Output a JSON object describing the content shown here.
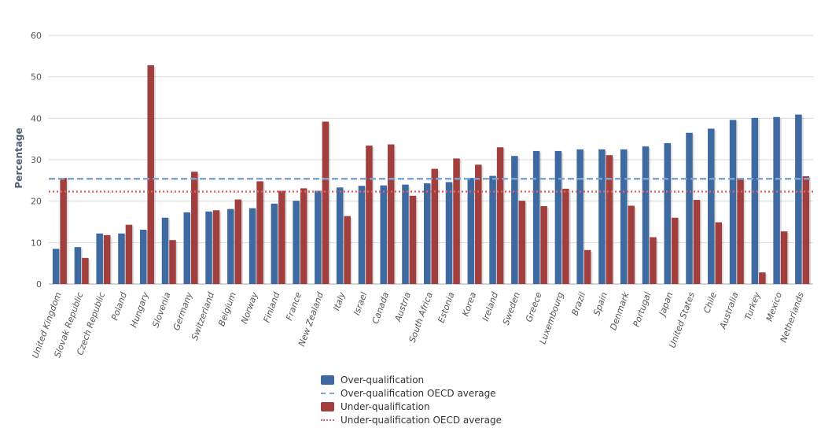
{
  "chart_data": {
    "type": "bar",
    "ylabel": "Percentage",
    "ylim": [
      0,
      60
    ],
    "yticks": [
      0,
      10,
      20,
      30,
      40,
      50,
      60
    ],
    "grid": true,
    "legend_position": "bottom-center",
    "categories": [
      "United Kingdom",
      "Slovak Republic",
      "Czech Republic",
      "Poland",
      "Hungary",
      "Slovenia",
      "Germany",
      "Switzerland",
      "Belgium",
      "Norway",
      "Finland",
      "France",
      "New Zealand",
      "Italy",
      "Israel",
      "Canada",
      "Austria",
      "South Africa",
      "Estonia",
      "Korea",
      "Ireland",
      "Sweden",
      "Greece",
      "Luxembourg",
      "Brazil",
      "Spain",
      "Denmark",
      "Portugal",
      "Japan",
      "United States",
      "Chile",
      "Australia",
      "Turkey",
      "Mexico",
      "Netherlands"
    ],
    "series": [
      {
        "name": "Over-qualification",
        "color": "#3e6aa1",
        "values": [
          8.5,
          8.9,
          12.2,
          12.2,
          13.1,
          16.0,
          17.3,
          17.5,
          18.1,
          18.3,
          19.4,
          20.1,
          22.5,
          23.3,
          23.7,
          23.8,
          24.0,
          24.3,
          24.6,
          25.6,
          26.1,
          30.9,
          32.1,
          32.1,
          32.5,
          32.5,
          32.5,
          33.2,
          34.0,
          36.5,
          37.5,
          39.6,
          40.1,
          40.3,
          40.9
        ]
      },
      {
        "name": "Under-qualification",
        "color": "#a13e3e",
        "values": [
          25.6,
          6.3,
          11.8,
          14.3,
          52.8,
          10.6,
          27.1,
          17.8,
          20.4,
          24.8,
          22.5,
          23.1,
          39.2,
          16.4,
          33.4,
          33.7,
          21.3,
          27.8,
          30.3,
          28.8,
          33.0,
          20.1,
          18.8,
          23.0,
          8.2,
          31.1,
          18.9,
          11.3,
          16.0,
          20.3,
          14.9,
          25.6,
          2.8,
          12.7,
          26.0
        ]
      }
    ],
    "reference_lines": [
      {
        "name": "Over-qualification OECD average",
        "value": 25.4,
        "color": "#7fa6d2",
        "style": "dashed"
      },
      {
        "name": "Under-qualification OECD average",
        "value": 22.3,
        "color": "#e06666",
        "style": "dotted"
      }
    ]
  }
}
